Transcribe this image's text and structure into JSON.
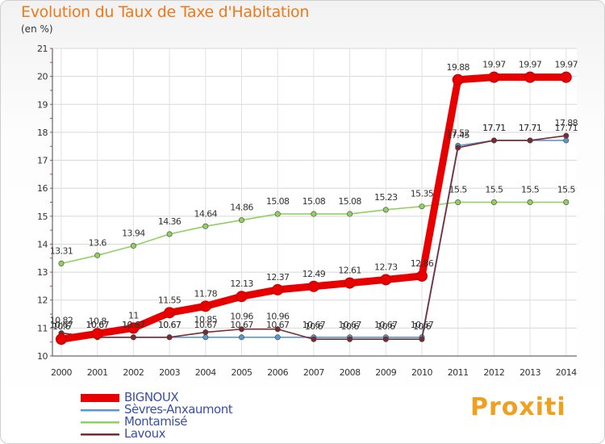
{
  "header": {
    "title": "Evolution du Taux de Taxe d'Habitation",
    "subtitle": "(en %)"
  },
  "brand": {
    "logo_text": "Proxiti"
  },
  "chart_data": {
    "type": "line",
    "title": "Evolution du Taux de Taxe d'Habitation",
    "ylabel": "(en %)",
    "xlabel": "",
    "x": [
      "2000",
      "2001",
      "2002",
      "2003",
      "2004",
      "2005",
      "2006",
      "2007",
      "2008",
      "2009",
      "2010",
      "2011",
      "2012",
      "2013",
      "2014"
    ],
    "ylim": [
      10,
      21
    ],
    "yticks": [
      "10",
      "11",
      "12",
      "13",
      "14",
      "15",
      "16",
      "17",
      "18",
      "19",
      "20",
      "21"
    ],
    "grid": true,
    "legend_position": "bottom-left",
    "series": [
      {
        "name": "BIGNOUX",
        "color": "#e80000",
        "values": [
          10.6,
          10.8,
          11,
          11.55,
          11.78,
          12.13,
          12.37,
          12.49,
          12.61,
          12.73,
          12.86,
          19.88,
          19.97,
          19.97,
          19.97
        ],
        "labels": [
          "10.6",
          "10.8",
          "11",
          "11.55",
          "11.78",
          "12.13",
          "12.37",
          "12.49",
          "12.61",
          "12.73",
          "12.86",
          "19.88",
          "19.97",
          "19.97",
          "19.97"
        ]
      },
      {
        "name": "Sèvres-Anxaumont",
        "color": "#5a96d0",
        "values": [
          10.67,
          10.67,
          10.67,
          10.67,
          10.67,
          10.67,
          10.67,
          10.67,
          10.67,
          10.67,
          10.67,
          17.52,
          17.71,
          17.71,
          17.71
        ],
        "labels": [
          "10.67",
          "10.67",
          "10.67",
          "10.67",
          "10.67",
          "10.67",
          "10.67",
          "10.67",
          "10.67",
          "10.67",
          "10.67",
          "17.52",
          "17.71",
          "17.71",
          "17.71"
        ]
      },
      {
        "name": "Montamisé",
        "color": "#90d060",
        "values": [
          13.31,
          13.6,
          13.94,
          14.36,
          14.64,
          14.86,
          15.08,
          15.08,
          15.08,
          15.23,
          15.35,
          15.5,
          15.5,
          15.5,
          15.5
        ],
        "labels": [
          "13.31",
          "13.6",
          "13.94",
          "14.36",
          "14.64",
          "14.86",
          "15.08",
          "15.08",
          "15.08",
          "15.23",
          "15.35",
          "15.5",
          "15.5",
          "15.5",
          "15.5"
        ]
      },
      {
        "name": "Lavoux",
        "color": "#7a2a30",
        "values": [
          10.82,
          10.67,
          10.67,
          10.67,
          10.85,
          10.96,
          10.96,
          10.6,
          10.6,
          10.6,
          10.6,
          17.45,
          17.71,
          17.71,
          17.88
        ],
        "labels": [
          "10.82",
          "10.67",
          "10.67",
          "10.67",
          "10.85",
          "10.96",
          "10.96",
          "10.6",
          "10.6",
          "10.6",
          "10.6",
          "17.45",
          "17.71",
          "17.71",
          "17.88"
        ]
      }
    ]
  }
}
